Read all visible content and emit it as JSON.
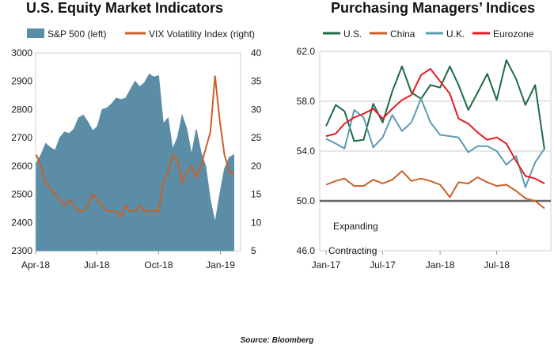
{
  "source": "Source: Bloomberg",
  "chart_data": [
    {
      "type": "area",
      "title": "U.S. Equity Market Indicators",
      "legend": [
        "S&P 500 (left)",
        "VIX Volatility Index (right)"
      ],
      "x_ticks": [
        "Apr-18",
        "Jul-18",
        "Oct-18",
        "Jan-19"
      ],
      "xlim": [
        "2018-04-01",
        "2019-01-31"
      ],
      "y_left": {
        "ylim": [
          2300,
          3000
        ],
        "ticks": [
          "3000",
          "2900",
          "2800",
          "2700",
          "2600",
          "2500",
          "2400",
          "2300"
        ]
      },
      "y_right": {
        "ylim": [
          5,
          40
        ],
        "ticks": [
          "40",
          "35",
          "30",
          "25",
          "20",
          "15",
          "10",
          "5"
        ]
      },
      "colors": {
        "sp500": "#5b8ea6",
        "vix": "#c8602a"
      },
      "series": [
        {
          "name": "S&P 500 (left)",
          "axis": "left",
          "type": "area",
          "x": [
            "2018-04-02",
            "2018-04-09",
            "2018-04-16",
            "2018-04-23",
            "2018-04-30",
            "2018-05-07",
            "2018-05-14",
            "2018-05-21",
            "2018-05-28",
            "2018-06-04",
            "2018-06-11",
            "2018-06-18",
            "2018-06-25",
            "2018-07-02",
            "2018-07-09",
            "2018-07-16",
            "2018-07-23",
            "2018-07-30",
            "2018-08-06",
            "2018-08-13",
            "2018-08-20",
            "2018-08-27",
            "2018-09-03",
            "2018-09-10",
            "2018-09-17",
            "2018-09-24",
            "2018-10-01",
            "2018-10-08",
            "2018-10-15",
            "2018-10-22",
            "2018-10-29",
            "2018-11-05",
            "2018-11-12",
            "2018-11-19",
            "2018-11-26",
            "2018-12-03",
            "2018-12-10",
            "2018-12-17",
            "2018-12-24",
            "2018-12-31",
            "2019-01-07",
            "2019-01-14",
            "2019-01-21"
          ],
          "values": [
            2610,
            2640,
            2680,
            2665,
            2655,
            2700,
            2720,
            2715,
            2730,
            2770,
            2780,
            2755,
            2725,
            2740,
            2800,
            2805,
            2820,
            2840,
            2835,
            2840,
            2870,
            2900,
            2880,
            2895,
            2925,
            2915,
            2920,
            2750,
            2770,
            2660,
            2700,
            2780,
            2730,
            2640,
            2730,
            2650,
            2600,
            2480,
            2400,
            2500,
            2590,
            2630,
            2640
          ]
        },
        {
          "name": "VIX Volatility Index (right)",
          "axis": "right",
          "type": "line",
          "x": [
            "2018-04-02",
            "2018-04-09",
            "2018-04-16",
            "2018-04-23",
            "2018-04-30",
            "2018-05-07",
            "2018-05-14",
            "2018-05-21",
            "2018-05-28",
            "2018-06-04",
            "2018-06-11",
            "2018-06-18",
            "2018-06-25",
            "2018-07-02",
            "2018-07-09",
            "2018-07-16",
            "2018-07-23",
            "2018-07-30",
            "2018-08-06",
            "2018-08-13",
            "2018-08-20",
            "2018-08-27",
            "2018-09-03",
            "2018-09-10",
            "2018-09-17",
            "2018-09-24",
            "2018-10-01",
            "2018-10-08",
            "2018-10-15",
            "2018-10-22",
            "2018-10-29",
            "2018-11-05",
            "2018-11-12",
            "2018-11-19",
            "2018-11-26",
            "2018-12-03",
            "2018-12-10",
            "2018-12-17",
            "2018-12-24",
            "2018-12-31",
            "2019-01-07",
            "2019-01-14",
            "2019-01-21"
          ],
          "values": [
            22,
            20,
            17,
            16,
            15,
            14,
            13,
            14,
            13,
            12,
            12,
            13,
            15,
            14,
            13,
            12,
            12,
            12,
            11,
            13,
            12,
            12,
            13,
            12,
            12,
            12,
            12,
            17,
            19,
            22,
            21,
            17,
            19,
            20,
            18,
            20,
            23,
            26,
            36,
            28,
            22,
            19,
            18.5
          ]
        }
      ]
    },
    {
      "type": "line",
      "title": "Purchasing Managers’ Indices",
      "x_ticks": [
        "Jan-17",
        "Jul-17",
        "Jan-18",
        "Jul-18"
      ],
      "xlim": [
        "2017-01",
        "2018-12"
      ],
      "ylim": [
        46,
        62
      ],
      "y_ticks": [
        "62.0",
        "58.0",
        "54.0",
        "50.0",
        "46.0"
      ],
      "reference_line": 50,
      "annotations": [
        "Expanding",
        "Contracting"
      ],
      "x": [
        "2017-01",
        "2017-02",
        "2017-03",
        "2017-04",
        "2017-05",
        "2017-06",
        "2017-07",
        "2017-08",
        "2017-09",
        "2017-10",
        "2017-11",
        "2017-12",
        "2018-01",
        "2018-02",
        "2018-03",
        "2018-04",
        "2018-05",
        "2018-06",
        "2018-07",
        "2018-08",
        "2018-09",
        "2018-10",
        "2018-11",
        "2018-12"
      ],
      "series": [
        {
          "name": "U.S.",
          "color": "#1e6b43",
          "values": [
            56.0,
            57.7,
            57.2,
            54.8,
            54.9,
            57.8,
            56.3,
            58.8,
            60.8,
            58.7,
            58.2,
            59.3,
            59.1,
            60.8,
            59.3,
            57.3,
            58.7,
            60.2,
            58.1,
            61.3,
            59.8,
            57.7,
            59.3,
            54.1
          ]
        },
        {
          "name": "China",
          "color": "#c8602a",
          "values": [
            51.3,
            51.6,
            51.8,
            51.2,
            51.2,
            51.7,
            51.4,
            51.7,
            52.4,
            51.6,
            51.8,
            51.6,
            51.3,
            50.3,
            51.5,
            51.4,
            51.9,
            51.5,
            51.2,
            51.3,
            50.8,
            50.2,
            50.0,
            49.4
          ]
        },
        {
          "name": "U.K.",
          "color": "#5b9bb5",
          "values": [
            55.0,
            54.6,
            54.2,
            57.3,
            56.7,
            54.3,
            55.1,
            56.9,
            55.6,
            56.3,
            58.2,
            56.3,
            55.3,
            55.2,
            55.1,
            53.9,
            54.4,
            54.4,
            54.0,
            52.9,
            53.6,
            51.1,
            53.1,
            54.2
          ]
        },
        {
          "name": "Eurozone",
          "color": "#e51c23",
          "values": [
            55.2,
            55.4,
            56.2,
            56.7,
            57.0,
            57.4,
            56.6,
            57.4,
            58.1,
            58.5,
            60.1,
            60.6,
            59.6,
            58.6,
            56.6,
            56.2,
            55.5,
            54.9,
            55.1,
            54.6,
            53.2,
            52.0,
            51.8,
            51.4
          ]
        }
      ]
    }
  ]
}
